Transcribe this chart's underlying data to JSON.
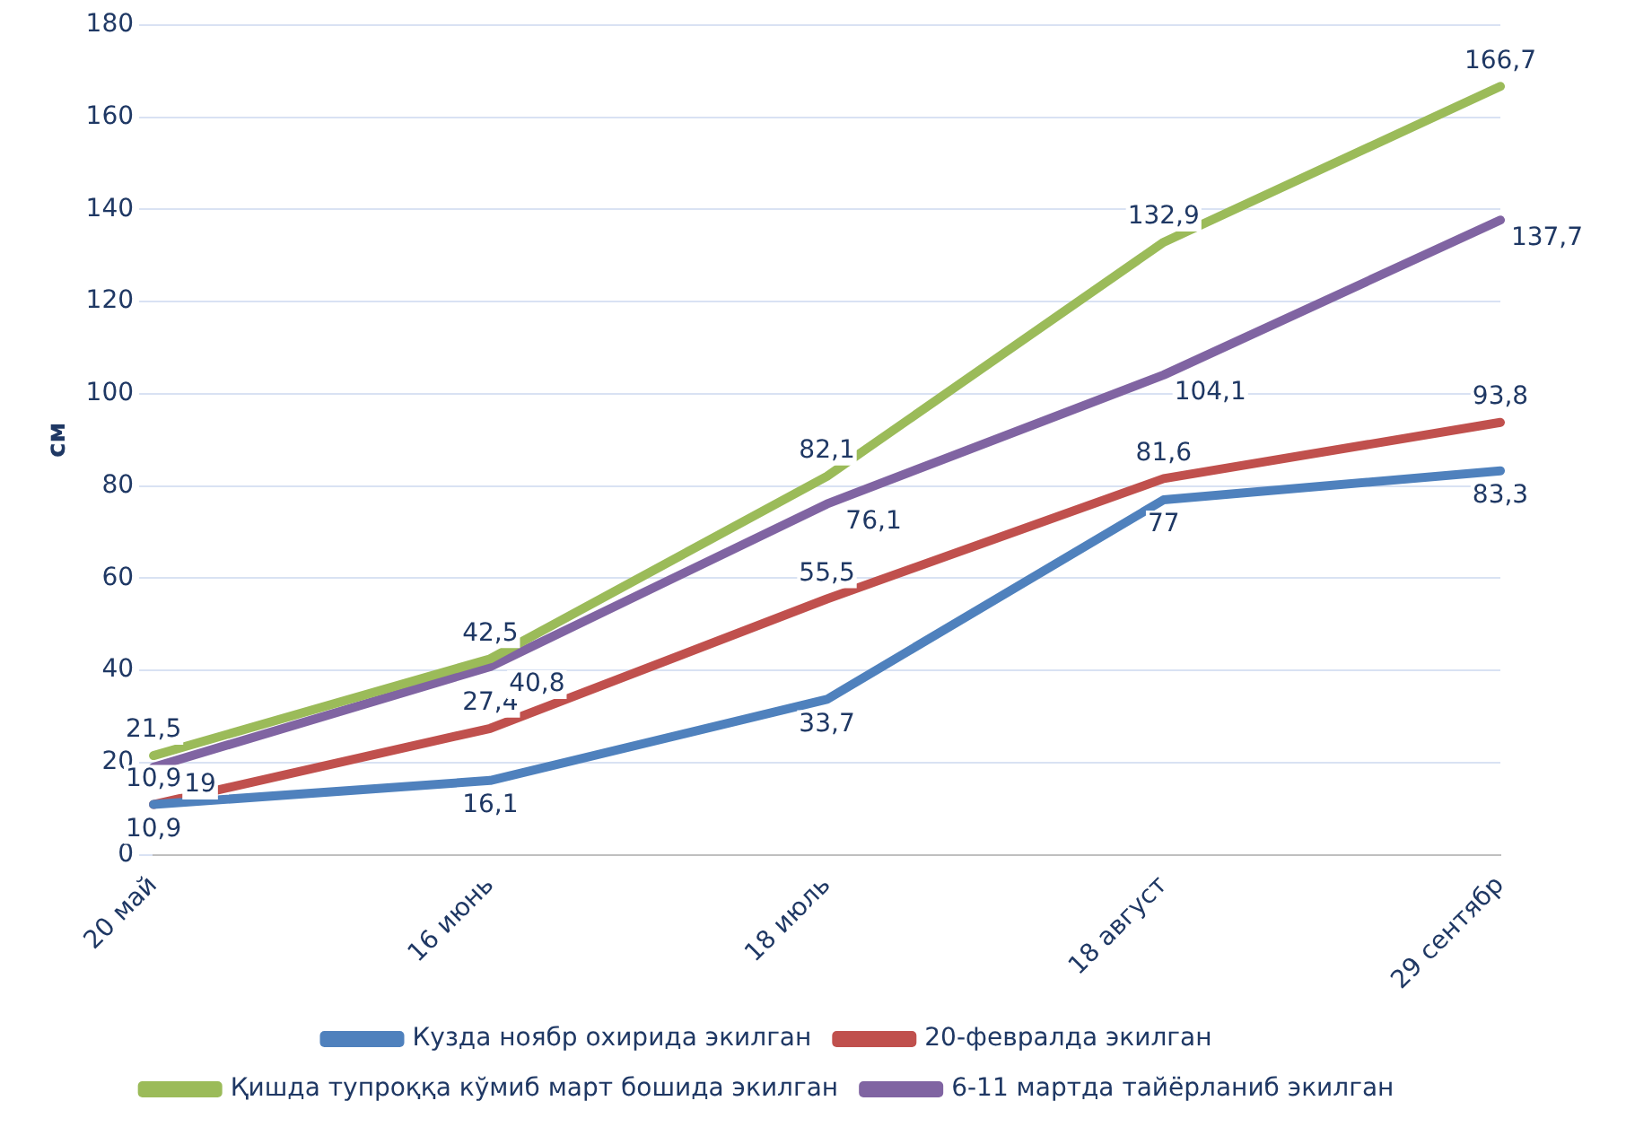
{
  "chart_data": {
    "type": "line",
    "ylabel": "см",
    "categories": [
      "20 май",
      "16 июнь",
      "18 июль",
      "18 август",
      "29 сентябр"
    ],
    "ylim": [
      0,
      180
    ],
    "yticks": [
      0,
      20,
      40,
      60,
      80,
      100,
      120,
      140,
      160,
      180
    ],
    "grid": "y",
    "legend": "bottom",
    "marker": "none",
    "line_style": "solid",
    "series": [
      {
        "name": "Кузда ноябр охирида экилган",
        "color": "#4f81bd",
        "values": [
          10.9,
          16.1,
          33.7,
          77,
          83.3
        ],
        "value_labels": [
          "10,9",
          "16,1",
          "33,7",
          "77",
          "83,3"
        ]
      },
      {
        "name": "20-февралда экилган",
        "color": "#c0504d",
        "values": [
          10.9,
          27.4,
          55.5,
          81.6,
          93.8
        ],
        "value_labels": [
          "10,9",
          "27,4",
          "55,5",
          "81,6",
          "93,8"
        ]
      },
      {
        "name": "Қишда тупроққа кўмиб март бошида экилган",
        "color": "#9bbb59",
        "values": [
          21.5,
          42.5,
          82.1,
          132.9,
          166.7
        ],
        "value_labels": [
          "21,5",
          "42,5",
          "82,1",
          "132,9",
          "166,7"
        ]
      },
      {
        "name": "6-11 мартда тайёрланиб экилган",
        "color": "#8064a2",
        "values": [
          19,
          40.8,
          76.1,
          104.1,
          137.7
        ],
        "value_labels": [
          "19",
          "40,8",
          "76,1",
          "104,1",
          "137,7"
        ]
      }
    ]
  }
}
